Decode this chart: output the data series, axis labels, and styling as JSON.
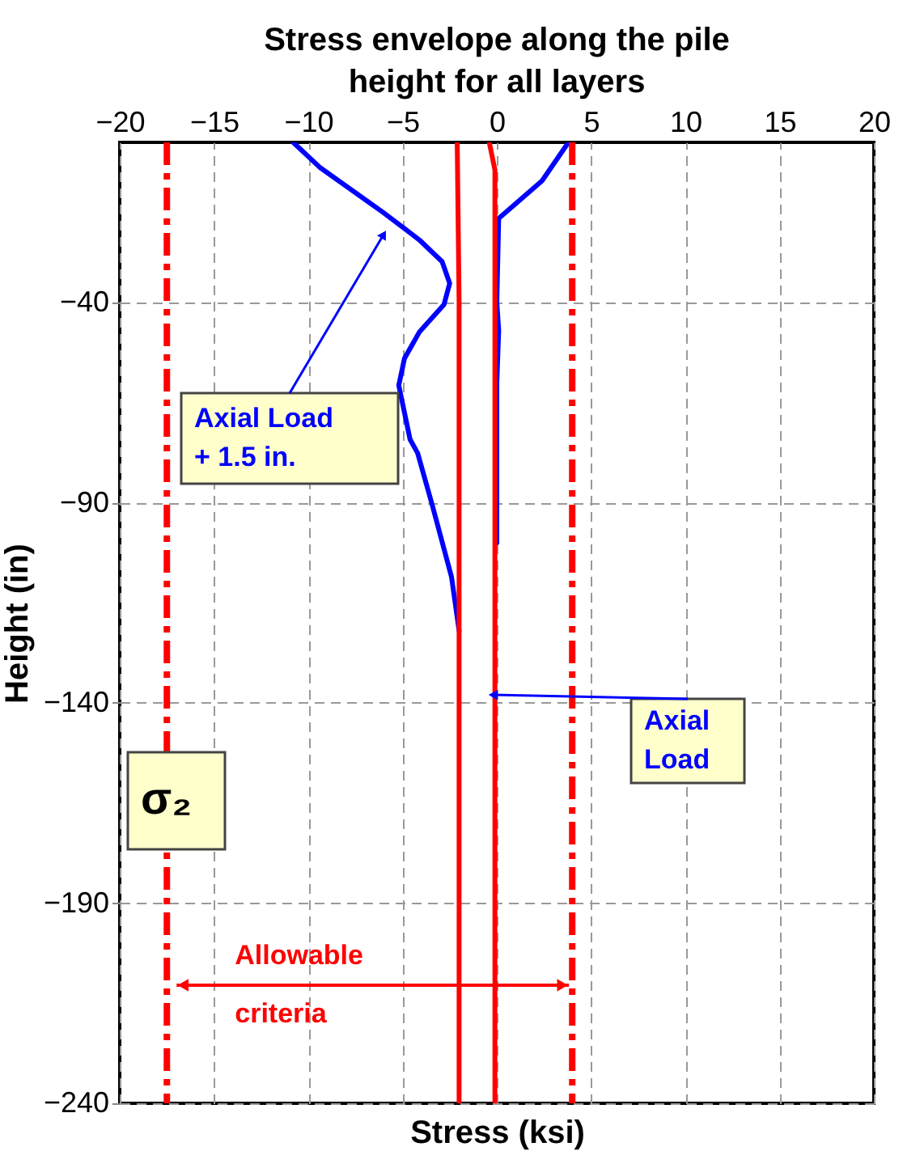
{
  "chart_data": {
    "type": "line",
    "title": "Stress envelope along the pile height for all layers",
    "xlabel": "Stress (ksi)",
    "ylabel": "Height (in)",
    "xlim": [
      -20,
      20
    ],
    "xticks": [
      -20,
      -15,
      -10,
      -5,
      0,
      5,
      10,
      15,
      20
    ],
    "ylim": [
      -240,
      0
    ],
    "yticks": [
      -40,
      -90,
      -140,
      -190,
      -240
    ],
    "grid": true,
    "marker": "none",
    "line_style": "solid",
    "series": [
      {
        "color": "#0000ff",
        "x": [
          -10.8,
          -9.4,
          -6.0,
          -4.1,
          -2.9,
          -2.5,
          -2.8,
          -4.1,
          -4.9,
          -5.2,
          -4.6,
          -4.2,
          -3.4,
          -2.4,
          -2.0
        ],
        "values": [
          0,
          -6.2,
          -17.6,
          -24.4,
          -29.8,
          -35.2,
          -40.5,
          -47.3,
          -54,
          -60.7,
          -74.2,
          -77.6,
          -91,
          -108.6,
          -122
        ]
      },
      {
        "color": "#0000ff",
        "x": [
          3.8,
          2.4,
          0.1,
          0.0,
          0.1,
          0.0,
          0.0
        ],
        "values": [
          0,
          -9.6,
          -19,
          -40,
          -47,
          -60,
          -100
        ]
      },
      {
        "color": "#ff0000",
        "x": [
          -2.1,
          -2.0,
          -2.0,
          -2.0
        ],
        "values": [
          0,
          -40,
          -140,
          -240
        ]
      },
      {
        "color": "#ff0000",
        "x": [
          -0.4,
          -0.1,
          -0.1,
          -0.1
        ],
        "values": [
          0,
          -6.9,
          -100,
          -240
        ]
      }
    ],
    "ref_lines": [
      {
        "axis": "x",
        "value": -17.5,
        "color": "#ff0000",
        "line_style": "dashed"
      },
      {
        "axis": "x",
        "value": 4,
        "color": "#ff0000",
        "line_style": "dashed"
      }
    ],
    "annotations": [
      "σ₂",
      {
        "text": "Axial Load + 1.5 in.",
        "x": -6,
        "y": -23
      },
      {
        "text": "Axial Load",
        "x": -0.2,
        "y": -138
      },
      "Allowable criteria"
    ]
  }
}
